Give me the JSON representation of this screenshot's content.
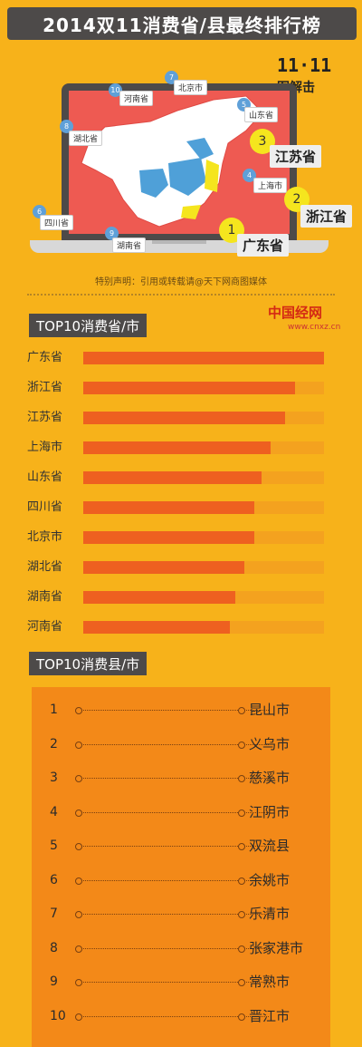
{
  "title": "2014双11消费省/县最终排行榜",
  "logo": {
    "numbers": "11·11",
    "text": "图解击"
  },
  "map": {
    "tags": [
      {
        "num": "10",
        "label": "河南省"
      },
      {
        "num": "7",
        "label": "北京市"
      },
      {
        "num": "5",
        "label": "山东省"
      },
      {
        "num": "8",
        "label": "湖北省"
      },
      {
        "num": "4",
        "label": "上海市"
      },
      {
        "num": "6",
        "label": "四川省"
      },
      {
        "num": "9",
        "label": "湖南省"
      }
    ],
    "top3": [
      {
        "num": "3",
        "label": "江苏省"
      },
      {
        "num": "2",
        "label": "浙江省"
      },
      {
        "num": "1",
        "label": "广东省"
      }
    ]
  },
  "note": "特别声明：引用或转载请@天下网商图媒体",
  "watermark": {
    "name": "中国经网",
    "url": "www.cnxz.cn"
  },
  "colors": {
    "background": "#f7b21a",
    "bar_fill": "#ee6020",
    "bar_track": "#f4a21f",
    "county_panel": "#f38918",
    "label_bg": "#4d4a49"
  },
  "province_section": {
    "label": "TOP10消费省/市"
  },
  "county_section": {
    "label": "TOP10消费县/市"
  },
  "chart_data": [
    {
      "type": "bar",
      "title": "TOP10消费省/市",
      "categories": [
        "广东省",
        "浙江省",
        "江苏省",
        "上海市",
        "山东省",
        "四川省",
        "北京市",
        "湖北省",
        "湖南省",
        "河南省"
      ],
      "values": [
        100,
        88,
        84,
        78,
        74,
        71,
        71,
        67,
        63,
        61
      ],
      "ylim": [
        0,
        100
      ]
    },
    {
      "type": "table",
      "title": "TOP10消费县/市",
      "ranks": [
        "1",
        "2",
        "3",
        "4",
        "5",
        "6",
        "7",
        "8",
        "9",
        "10"
      ],
      "names": [
        "昆山市",
        "义乌市",
        "慈溪市",
        "江阴市",
        "双流县",
        "余姚市",
        "乐清市",
        "张家港市",
        "常熟市",
        "晋江市"
      ]
    }
  ]
}
